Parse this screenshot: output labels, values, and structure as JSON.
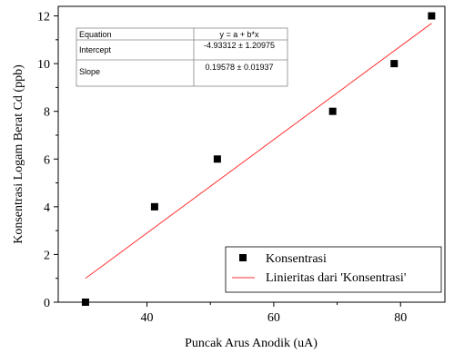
{
  "chart_data": {
    "type": "scatter",
    "xlabel": "Puncak Arus Anodik (uA)",
    "ylabel": "Konsentrasi Logam Berat Cd (ppb)",
    "xlim": [
      26,
      87
    ],
    "ylim": [
      0,
      12.4
    ],
    "x_ticks": [
      40,
      60,
      80
    ],
    "y_ticks": [
      0,
      2,
      4,
      6,
      8,
      10,
      12
    ],
    "grid": false,
    "series": [
      {
        "name": "Konsentrasi",
        "marker": "square",
        "color": "#000000",
        "points": [
          {
            "x": 30.3,
            "y": 0
          },
          {
            "x": 41.2,
            "y": 4
          },
          {
            "x": 51.1,
            "y": 6
          },
          {
            "x": 69.3,
            "y": 8
          },
          {
            "x": 79.0,
            "y": 10
          },
          {
            "x": 84.9,
            "y": 12
          }
        ]
      },
      {
        "name": "Linieritas dari 'Konsentrasi'",
        "type": "line",
        "color": "#ff3333",
        "x_range": [
          30.3,
          84.9
        ],
        "intercept": -4.93312,
        "slope": 0.19578
      }
    ],
    "legend": {
      "placement": "bottom-right",
      "entries": [
        "Konsentrasi",
        "Linieritas dari 'Konsentrasi'"
      ]
    },
    "fit_table": {
      "placement": "top-left",
      "rows": [
        [
          "Equation",
          "y = a + b*x"
        ],
        [
          "Intercept",
          "-4.93312 ± 1.20975"
        ],
        [
          "Slope",
          "0.19578 ± 0.01937"
        ]
      ]
    }
  }
}
